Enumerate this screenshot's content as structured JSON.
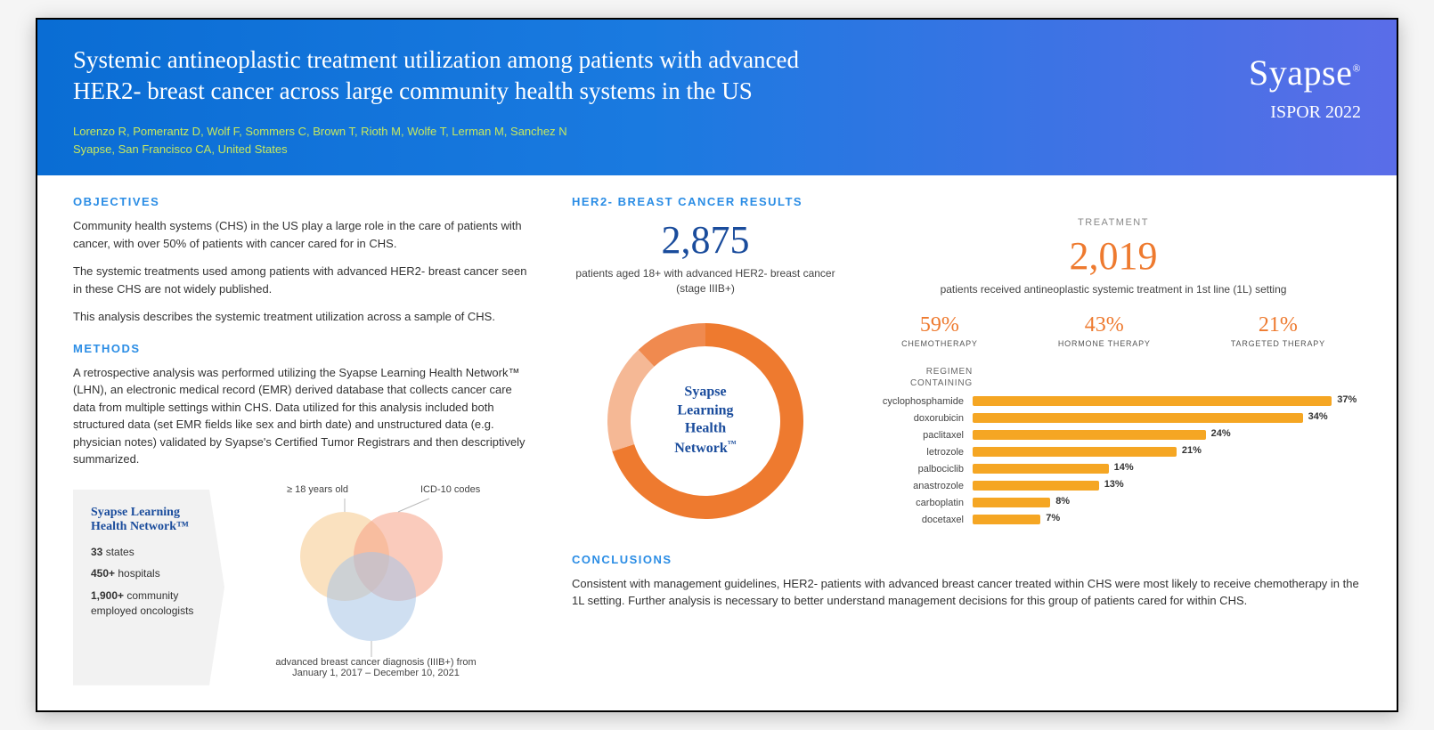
{
  "header": {
    "title": "Systemic antineoplastic treatment utilization among patients with advanced HER2- breast cancer across large community health systems in the US",
    "authors": "Lorenzo R, Pomerantz D, Wolf F, Sommers C, Brown T, Rioth M, Wolfe T, Lerman M, Sanchez N",
    "affiliation": "Syapse, San Francisco CA, United States",
    "logo": "Syapse",
    "conference": "ISPOR 2022"
  },
  "objectives": {
    "heading": "OBJECTIVES",
    "p1": "Community health systems (CHS) in the US play a large role in the care of patients with cancer, with over 50% of patients with cancer cared for in CHS.",
    "p2": "The systemic treatments used among patients with advanced HER2- breast cancer seen in these CHS are not widely published.",
    "p3": "This analysis describes the systemic treatment utilization across a sample of CHS."
  },
  "methods": {
    "heading": "METHODS",
    "p1": "A retrospective analysis was performed utilizing the Syapse Learning Health Network™ (LHN), an electronic medical record (EMR) derived database that collects cancer care data from multiple settings within CHS. Data utilized for this analysis included both structured data (set EMR fields like sex and birth date) and unstructured data (e.g. physician notes) validated by Syapse's Certified Tumor Registrars and then descriptively summarized."
  },
  "network": {
    "title": "Syapse Learning Health Network™",
    "stat1_num": "33",
    "stat1_label": " states",
    "stat2_num": "450+",
    "stat2_label": " hospitals",
    "stat3_num": "1,900+",
    "stat3_label": " community employed oncologists"
  },
  "venn": {
    "label_age": "≥ 18 years old",
    "label_icd": "ICD-10 codes",
    "label_dx": "advanced breast cancer diagnosis (IIIB+) from January 1, 2017 – December 10, 2021",
    "circle_age_color": "#f5c98a",
    "circle_icd_color": "#f5a085",
    "circle_dx_color": "#a8c5e5",
    "opacity": 0.55
  },
  "results": {
    "heading": "HER2- BREAST CANCER RESULTS",
    "patients_num": "2,875",
    "patients_desc": "patients aged 18+ with advanced HER2- breast cancer (stage IIIB+)",
    "treatment_label": "TREATMENT",
    "treated_num": "2,019",
    "treated_desc": "patients received antineoplastic systemic treatment in 1st line (1L) setting",
    "donut": {
      "center_text": "Syapse Learning Health Network™",
      "segments": [
        {
          "pct": 70,
          "color": "#ee7a2f"
        },
        {
          "pct": 18,
          "color": "#f5b895"
        },
        {
          "pct": 12,
          "color": "#f08a4f"
        }
      ],
      "ring_width": 26
    },
    "percentages": [
      {
        "value": "59%",
        "label": "CHEMOTHERAPY"
      },
      {
        "value": "43%",
        "label": "HORMONE THERAPY"
      },
      {
        "value": "21%",
        "label": "TARGETED THERAPY"
      }
    ],
    "regimen_heading": "REGIMEN CONTAINING",
    "bars": [
      {
        "label": "cyclophosphamide",
        "pct": 37
      },
      {
        "label": "doxorubicin",
        "pct": 34
      },
      {
        "label": "paclitaxel",
        "pct": 24
      },
      {
        "label": "letrozole",
        "pct": 21
      },
      {
        "label": "palbociclib",
        "pct": 14
      },
      {
        "label": "anastrozole",
        "pct": 13
      },
      {
        "label": "carboplatin",
        "pct": 8
      },
      {
        "label": "docetaxel",
        "pct": 7
      }
    ],
    "bar_color": "#f5a623",
    "bar_max_pct": 40
  },
  "conclusions": {
    "heading": "CONCLUSIONS",
    "text": "Consistent with management guidelines, HER2- patients with advanced breast cancer treated within CHS were most likely to receive chemotherapy in the 1L setting. Further analysis is necessary to better understand management decisions for this group of patients cared for within CHS."
  },
  "colors": {
    "heading_blue": "#2b8de5",
    "brand_blue": "#1a4c9c",
    "orange": "#ee7a2f",
    "lime": "#c5e85f"
  }
}
